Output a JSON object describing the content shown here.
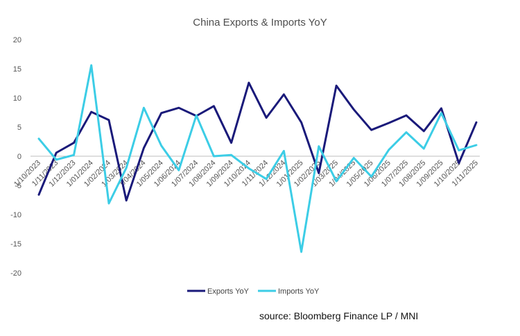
{
  "chart_data": {
    "type": "line",
    "title": "China Exports & Imports YoY",
    "categories": [
      "1/10/2023",
      "1/11/2023",
      "1/12/2023",
      "1/01/2024",
      "1/02/2024",
      "1/03/2024",
      "1/04/2024",
      "1/05/2024",
      "1/06/2024",
      "1/07/2024",
      "1/08/2024",
      "1/09/2024",
      "1/10/2024",
      "1/11/2024",
      "1/12/2024",
      "1/01/2025",
      "1/02/2025",
      "1/03/2025",
      "1/04/2025",
      "1/05/2025",
      "1/06/2025",
      "1/07/2025",
      "1/08/2025",
      "1/09/2025",
      "1/10/2025",
      "1/11/2025"
    ],
    "series": [
      {
        "name": "Exports YoY",
        "color": "#1a1a7a",
        "values": [
          -6.6,
          0.6,
          2.3,
          7.6,
          6.2,
          -7.6,
          1.4,
          7.4,
          8.3,
          6.9,
          8.6,
          2.3,
          12.6,
          6.6,
          10.6,
          5.8,
          -2.9,
          12.1,
          8.0,
          4.5,
          5.7,
          7.0,
          4.3,
          8.2,
          -1.2,
          5.8
        ]
      },
      {
        "name": "Imports YoY",
        "color": "#3ccde6",
        "values": [
          3.0,
          -0.6,
          0.2,
          15.6,
          -8.1,
          -2.0,
          8.3,
          1.8,
          -2.4,
          7.0,
          0.0,
          0.2,
          -2.1,
          -3.9,
          0.9,
          -16.4,
          1.7,
          -4.3,
          -0.3,
          -3.5,
          1.1,
          4.1,
          1.3,
          7.4,
          1.0,
          1.9
        ]
      }
    ],
    "yticks": [
      20,
      15,
      10,
      5,
      0,
      -5,
      -10,
      -15,
      -20
    ],
    "ylim": [
      -20,
      20
    ],
    "legend": "bottom"
  },
  "source": "source: Bloomberg Finance LP / MNI"
}
